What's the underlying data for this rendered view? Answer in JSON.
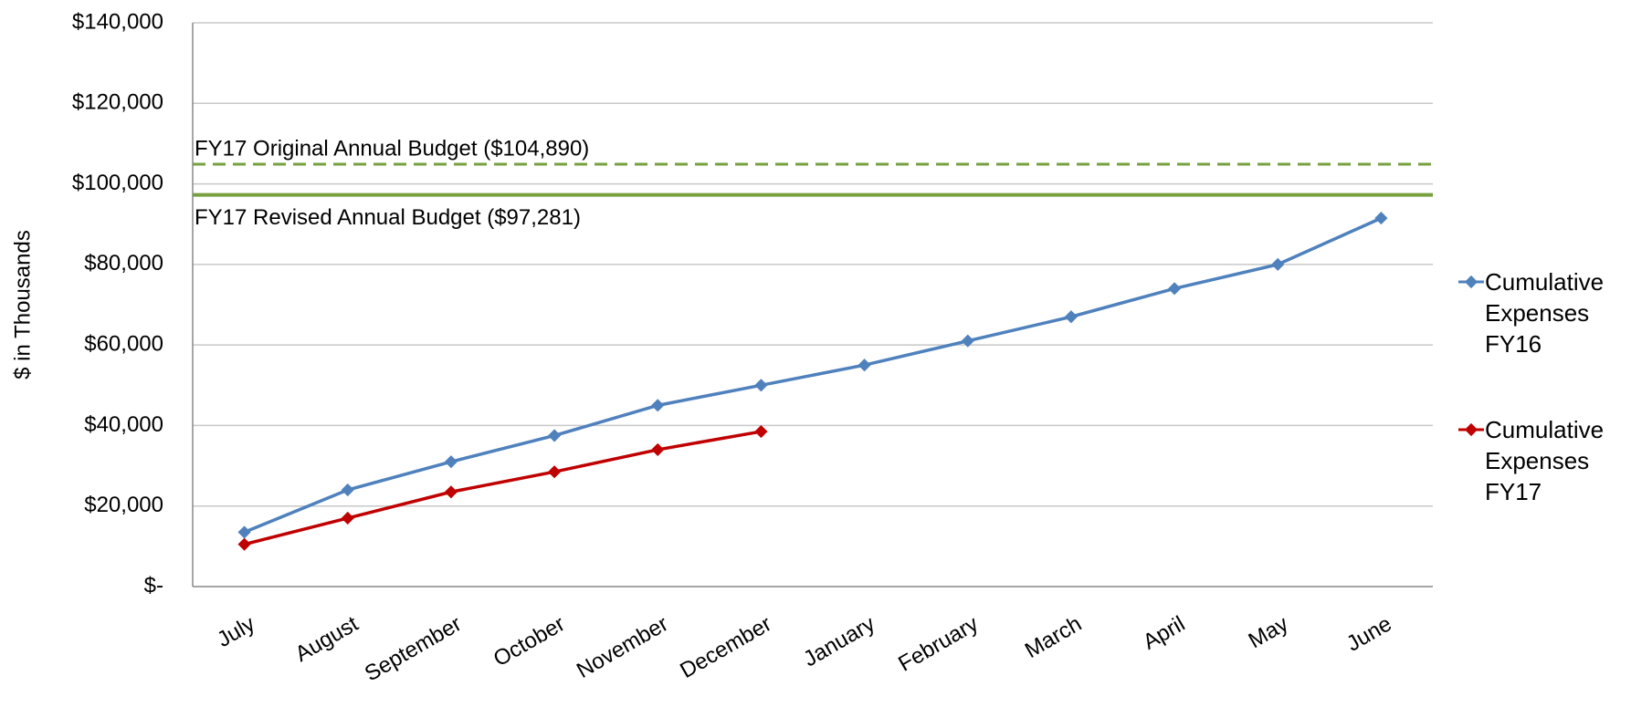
{
  "chart_data": {
    "type": "line",
    "y_label": "$ in Thousands",
    "categories": [
      "July",
      "August",
      "September",
      "October",
      "November",
      "December",
      "January",
      "February",
      "March",
      "April",
      "May",
      "June"
    ],
    "series": [
      {
        "name": "Cumulative Expenses FY16",
        "color": "#4f81bd",
        "values": [
          13500,
          24000,
          31000,
          37500,
          45000,
          50000,
          55000,
          61000,
          67000,
          74000,
          80000,
          91500
        ]
      },
      {
        "name": "Cumulative Expenses FY17",
        "color": "#c00000",
        "values": [
          10500,
          17000,
          23500,
          28500,
          34000,
          38500,
          null,
          null,
          null,
          null,
          null,
          null
        ]
      }
    ],
    "reference_lines": [
      {
        "label": "FY17 Original Annual Budget ($104,890)",
        "value": 104890,
        "color": "#77a03f",
        "style": "dashed"
      },
      {
        "label": "FY17 Revised Annual Budget ($97,281)",
        "value": 97281,
        "color": "#77a03f",
        "style": "solid"
      }
    ],
    "ylim": [
      0,
      140000
    ],
    "yticks": [
      {
        "value": 0,
        "label": "$-"
      },
      {
        "value": 20000,
        "label": "$20,000"
      },
      {
        "value": 40000,
        "label": "$40,000"
      },
      {
        "value": 60000,
        "label": "$60,000"
      },
      {
        "value": 80000,
        "label": "$80,000"
      },
      {
        "value": 100000,
        "label": "$100,000"
      },
      {
        "value": 120000,
        "label": "$120,000"
      },
      {
        "value": 140000,
        "label": "$140,000"
      }
    ],
    "grid": true,
    "legend": "right"
  }
}
